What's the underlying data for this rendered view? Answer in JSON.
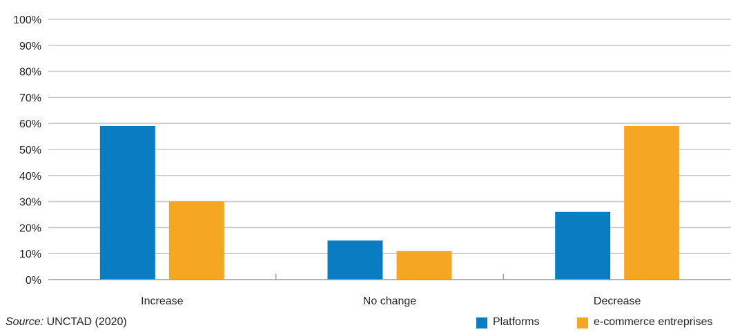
{
  "chart_data": {
    "type": "bar",
    "categories": [
      "Increase",
      "No change",
      "Decrease"
    ],
    "series": [
      {
        "name": "Platforms",
        "values": [
          59,
          15,
          26
        ],
        "color": "#0a7dc2"
      },
      {
        "name": "e-commerce entreprises",
        "values": [
          30,
          11,
          59
        ],
        "color": "#f5a623"
      }
    ],
    "ylim": [
      0,
      100
    ],
    "yticks": [
      "0%",
      "10%",
      "20%",
      "30%",
      "40%",
      "50%",
      "60%",
      "70%",
      "80%",
      "90%",
      "100%"
    ],
    "grid": true,
    "legend_position": "bottom-right"
  },
  "source": {
    "label": "Source:",
    "text": " UNCTAD (2020)"
  },
  "colors": {
    "gridline": "#c8c8c8",
    "axis": "#9a9a9a"
  }
}
